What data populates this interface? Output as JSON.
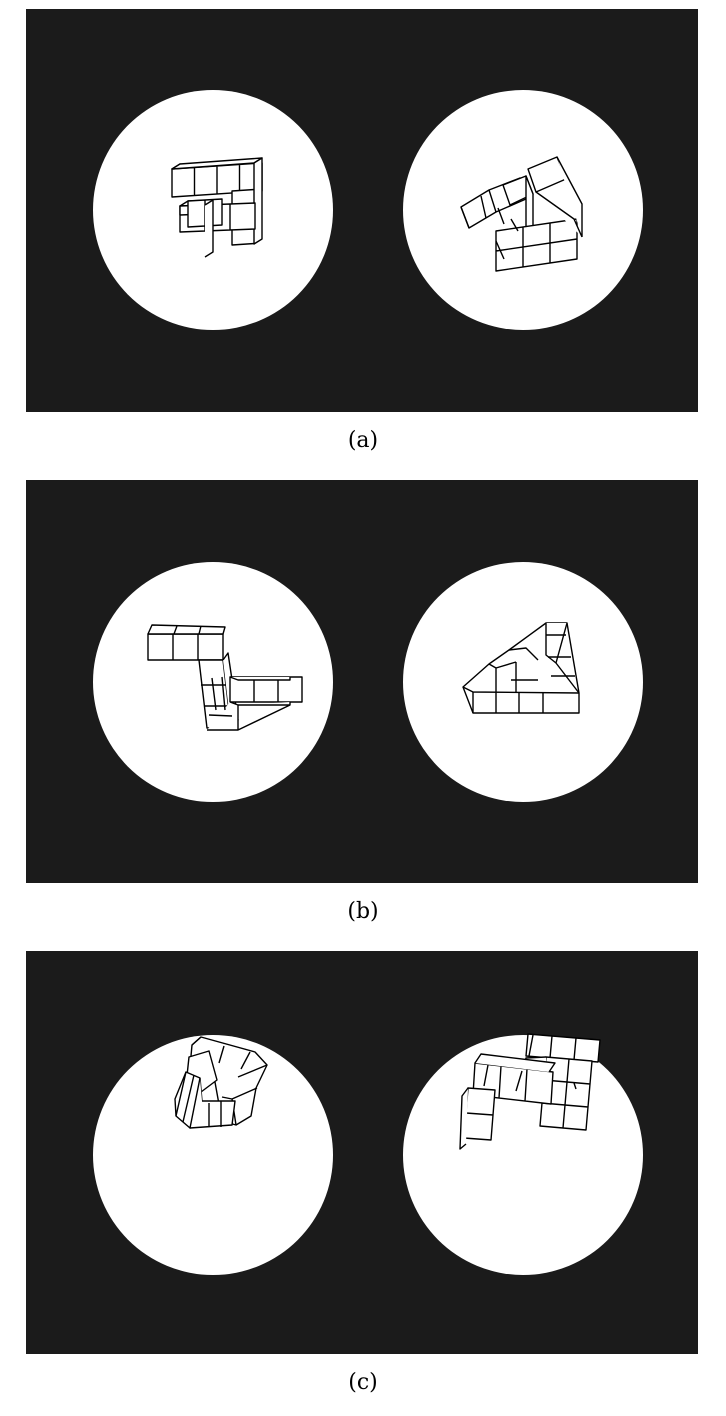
{
  "panels": [
    {
      "id": "a",
      "caption": "(a)"
    },
    {
      "id": "b",
      "caption": "(b)"
    },
    {
      "id": "c",
      "caption": "(c)"
    }
  ],
  "colors": {
    "panel_background": "#1b1b1b",
    "disc": "#ffffff",
    "lines": "#000000"
  }
}
